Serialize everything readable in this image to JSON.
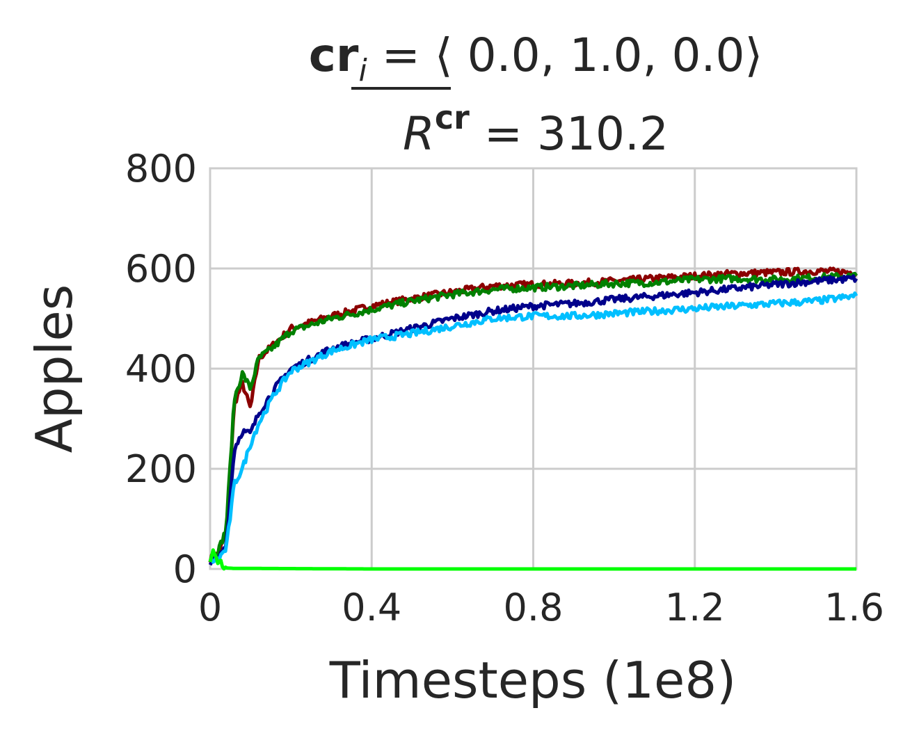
{
  "chart_data": {
    "type": "line",
    "title_parts": {
      "line1_bold": "cr",
      "line1_sub": "i",
      "line1_rest": " = ⟨ 0.0, 1.0, 0.0⟩",
      "line2_R": "R",
      "line2_sup": "cr",
      "line2_rest": " = 310.2"
    },
    "xlabel": "Timesteps (1e8)",
    "ylabel": "Apples",
    "xlim": [
      0,
      1.6
    ],
    "ylim": [
      0,
      800
    ],
    "xticks": [
      "0",
      "0.4",
      "0.8",
      "1.2",
      "1.6"
    ],
    "yticks": [
      "0",
      "200",
      "400",
      "600",
      "800"
    ],
    "grid": true,
    "legend": "none",
    "series": [
      {
        "color": "#8b0000",
        "points": [
          [
            0,
            20
          ],
          [
            0.02,
            30
          ],
          [
            0.04,
            70
          ],
          [
            0.06,
            330
          ],
          [
            0.08,
            370
          ],
          [
            0.1,
            320
          ],
          [
            0.12,
            420
          ],
          [
            0.16,
            450
          ],
          [
            0.2,
            480
          ],
          [
            0.3,
            505
          ],
          [
            0.4,
            525
          ],
          [
            0.5,
            540
          ],
          [
            0.6,
            553
          ],
          [
            0.7,
            565
          ],
          [
            0.8,
            568
          ],
          [
            0.9,
            570
          ],
          [
            1.0,
            575
          ],
          [
            1.1,
            580
          ],
          [
            1.2,
            585
          ],
          [
            1.3,
            590
          ],
          [
            1.4,
            592
          ],
          [
            1.5,
            595
          ],
          [
            1.6,
            592
          ]
        ]
      },
      {
        "color": "#008000",
        "points": [
          [
            0,
            20
          ],
          [
            0.02,
            35
          ],
          [
            0.04,
            80
          ],
          [
            0.06,
            340
          ],
          [
            0.08,
            390
          ],
          [
            0.1,
            360
          ],
          [
            0.12,
            420
          ],
          [
            0.16,
            445
          ],
          [
            0.2,
            475
          ],
          [
            0.3,
            500
          ],
          [
            0.4,
            518
          ],
          [
            0.5,
            535
          ],
          [
            0.6,
            548
          ],
          [
            0.7,
            558
          ],
          [
            0.8,
            562
          ],
          [
            0.9,
            565
          ],
          [
            1.0,
            570
          ],
          [
            1.1,
            572
          ],
          [
            1.2,
            578
          ],
          [
            1.3,
            580
          ],
          [
            1.4,
            578
          ],
          [
            1.5,
            582
          ],
          [
            1.6,
            585
          ]
        ]
      },
      {
        "color": "#00008b",
        "points": [
          [
            0,
            15
          ],
          [
            0.02,
            20
          ],
          [
            0.04,
            50
          ],
          [
            0.06,
            240
          ],
          [
            0.08,
            275
          ],
          [
            0.1,
            270
          ],
          [
            0.12,
            310
          ],
          [
            0.16,
            360
          ],
          [
            0.2,
            400
          ],
          [
            0.3,
            440
          ],
          [
            0.4,
            460
          ],
          [
            0.5,
            480
          ],
          [
            0.6,
            500
          ],
          [
            0.7,
            515
          ],
          [
            0.8,
            525
          ],
          [
            0.9,
            530
          ],
          [
            1.0,
            538
          ],
          [
            1.1,
            545
          ],
          [
            1.2,
            552
          ],
          [
            1.3,
            560
          ],
          [
            1.4,
            568
          ],
          [
            1.5,
            575
          ],
          [
            1.6,
            580
          ]
        ]
      },
      {
        "color": "#00bfff",
        "points": [
          [
            0,
            15
          ],
          [
            0.02,
            20
          ],
          [
            0.04,
            40
          ],
          [
            0.06,
            170
          ],
          [
            0.08,
            200
          ],
          [
            0.1,
            250
          ],
          [
            0.12,
            290
          ],
          [
            0.16,
            350
          ],
          [
            0.2,
            395
          ],
          [
            0.3,
            435
          ],
          [
            0.4,
            458
          ],
          [
            0.5,
            470
          ],
          [
            0.6,
            485
          ],
          [
            0.7,
            500
          ],
          [
            0.8,
            505
          ],
          [
            0.9,
            505
          ],
          [
            1.0,
            510
          ],
          [
            1.1,
            515
          ],
          [
            1.2,
            520
          ],
          [
            1.3,
            525
          ],
          [
            1.4,
            530
          ],
          [
            1.5,
            535
          ],
          [
            1.6,
            545
          ]
        ]
      },
      {
        "color": "#00ff00",
        "points": [
          [
            0,
            20
          ],
          [
            0.01,
            35
          ],
          [
            0.02,
            15
          ],
          [
            0.03,
            10
          ],
          [
            0.04,
            2
          ],
          [
            0.06,
            1
          ],
          [
            0.1,
            1
          ],
          [
            0.4,
            0
          ],
          [
            0.8,
            0
          ],
          [
            1.2,
            0
          ],
          [
            1.6,
            0
          ]
        ]
      }
    ]
  }
}
